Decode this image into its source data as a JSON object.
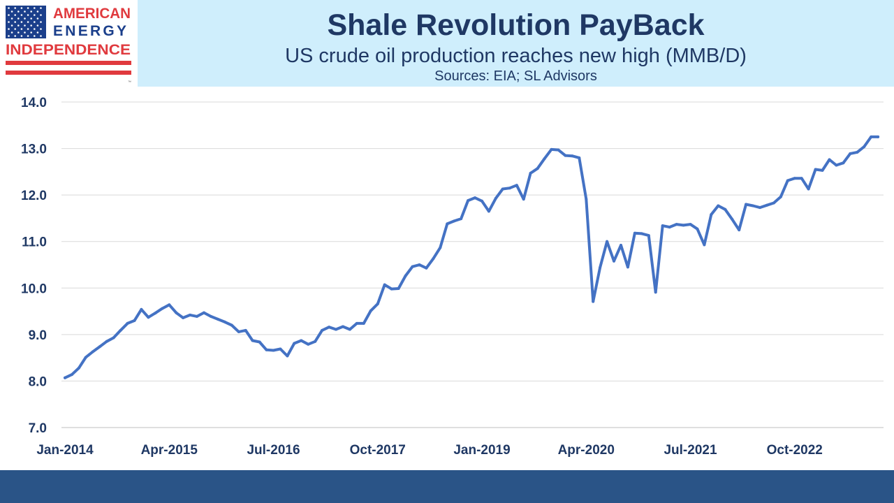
{
  "logo": {
    "line1": "AMERICAN",
    "line2": "ENERGY",
    "line3": "INDEPENDENCE",
    "trademark": "™",
    "colors": {
      "blue": "#1b3f8b",
      "red": "#e03a3e"
    }
  },
  "header": {
    "title": "Shale Revolution PayBack",
    "subtitle": "US crude oil production reaches new high (MMB/D)",
    "sources": "Sources: EIA; SL Advisors"
  },
  "colors": {
    "header_bg": "#cfeefc",
    "title": "#1f3864",
    "line": "#4472c4",
    "footer": "#2a5487",
    "grid": "#d9d9d9"
  },
  "chart_data": {
    "type": "line",
    "title": "Shale Revolution PayBack",
    "subtitle": "US crude oil production reaches new high (MMB/D)",
    "xlabel": "",
    "ylabel": "",
    "ylim": [
      7.0,
      14.0
    ],
    "yticks": [
      "7.0",
      "8.0",
      "9.0",
      "10.0",
      "11.0",
      "12.0",
      "13.0",
      "14.0"
    ],
    "xticks": [
      "Jan-2014",
      "Apr-2015",
      "Jul-2016",
      "Oct-2017",
      "Jan-2019",
      "Apr-2020",
      "Jul-2021",
      "Oct-2022"
    ],
    "x_start": "Jan-2014",
    "frequency": "monthly",
    "grid": true,
    "legend": "none",
    "series": [
      {
        "values": [
          8.07,
          8.14,
          8.28,
          8.51,
          8.63,
          8.74,
          8.85,
          8.93,
          9.09,
          9.24,
          9.3,
          9.54,
          9.37,
          9.46,
          9.56,
          9.64,
          9.47,
          9.36,
          9.42,
          9.39,
          9.47,
          9.39,
          9.33,
          9.27,
          9.2,
          9.06,
          9.09,
          8.87,
          8.84,
          8.67,
          8.66,
          8.69,
          8.54,
          8.81,
          8.87,
          8.79,
          8.85,
          9.09,
          9.16,
          9.11,
          9.17,
          9.11,
          9.24,
          9.24,
          9.51,
          9.66,
          10.07,
          9.98,
          9.99,
          10.26,
          10.46,
          10.5,
          10.43,
          10.63,
          10.87,
          11.38,
          11.44,
          11.49,
          11.88,
          11.94,
          11.87,
          11.65,
          11.93,
          12.13,
          12.15,
          12.21,
          11.91,
          12.47,
          12.57,
          12.78,
          12.98,
          12.97,
          12.85,
          12.84,
          12.8,
          11.91,
          9.71,
          10.44,
          11.0,
          10.58,
          10.92,
          10.45,
          11.18,
          11.17,
          11.13,
          9.91,
          11.34,
          11.31,
          11.37,
          11.35,
          11.37,
          11.27,
          10.93,
          11.58,
          11.77,
          11.69,
          11.48,
          11.25,
          11.8,
          11.77,
          11.73,
          11.78,
          11.83,
          11.96,
          12.31,
          12.36,
          12.36,
          12.13,
          12.55,
          12.53,
          12.76,
          12.64,
          12.69,
          12.89,
          12.92,
          13.04,
          13.25,
          13.25
        ]
      }
    ]
  }
}
